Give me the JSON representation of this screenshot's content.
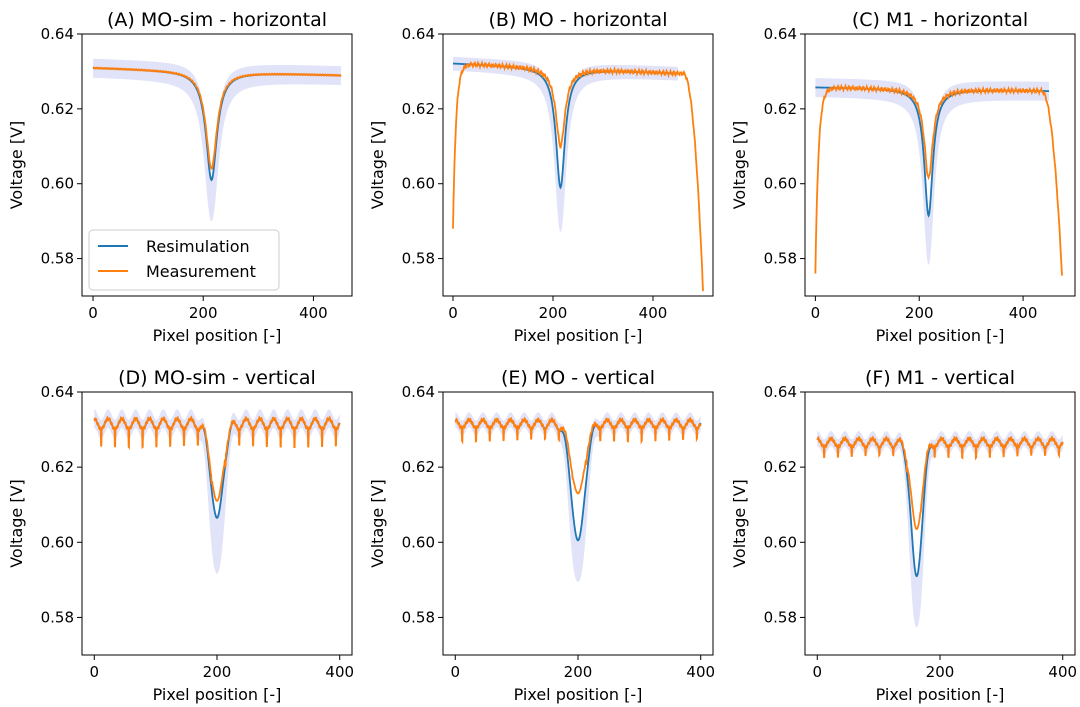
{
  "colors": {
    "resimulation": "#1f77b4",
    "measurement": "#ff7f0e",
    "band": "#c8ccf2"
  },
  "legend": {
    "resimulation": "Resimulation",
    "measurement": "Measurement"
  },
  "chart_data": [
    {
      "type": "line",
      "id": "A",
      "title": "(A) MO-sim - horizontal",
      "xlabel": "Pixel position [-]",
      "ylabel": "Voltage [V]",
      "xlim": [
        -20,
        470
      ],
      "ylim": [
        0.57,
        0.64
      ],
      "xticks": [
        0,
        200,
        400
      ],
      "yticks": [
        0.58,
        0.6,
        0.62,
        0.64
      ],
      "yticklabels": [
        "0.58",
        "0.60",
        "0.62",
        "0.64"
      ],
      "legend": "lower-left",
      "profile": {
        "kind": "horizontal",
        "x_start": 0,
        "x_end": 450,
        "baseline_start": 0.631,
        "baseline_end": 0.629,
        "dip_center": 215,
        "dip_width": 12
      },
      "series": [
        {
          "name": "Resimulation",
          "dip_min": 0.601,
          "band_half_width": 0.0025,
          "band_dip_min": 0.588
        },
        {
          "name": "Measurement",
          "dip_min": 0.604,
          "edge_dropoff": false
        }
      ]
    },
    {
      "type": "line",
      "id": "B",
      "title": "(B) MO - horizontal",
      "xlabel": "Pixel position [-]",
      "ylabel": "Voltage [V]",
      "xlim": [
        -20,
        520
      ],
      "ylim": [
        0.57,
        0.64
      ],
      "xticks": [
        0,
        200,
        400
      ],
      "yticks": [
        0.58,
        0.6,
        0.62,
        0.64
      ],
      "yticklabels": [
        "0.58",
        "0.60",
        "0.62",
        "0.64"
      ],
      "profile": {
        "kind": "horizontal",
        "x_start": 0,
        "x_end": 450,
        "baseline_start": 0.6322,
        "baseline_end": 0.6295,
        "dip_center": 215,
        "dip_width": 11
      },
      "series": [
        {
          "name": "Resimulation",
          "dip_min": 0.599,
          "band_half_width": 0.0018,
          "band_dip_min": 0.585
        },
        {
          "name": "Measurement",
          "dip_min": 0.61,
          "x_end": 500,
          "start_value": 0.588,
          "end_value": 0.5715,
          "edge_dropoff": true
        }
      ]
    },
    {
      "type": "line",
      "id": "C",
      "title": "(C) M1 - horizontal",
      "xlabel": "Pixel position [-]",
      "ylabel": "Voltage [V]",
      "xlim": [
        -20,
        500
      ],
      "ylim": [
        0.57,
        0.64
      ],
      "xticks": [
        0,
        200,
        400
      ],
      "yticks": [
        0.58,
        0.6,
        0.62,
        0.64
      ],
      "yticklabels": [
        "0.58",
        "0.60",
        "0.62",
        "0.64"
      ],
      "profile": {
        "kind": "horizontal",
        "x_start": 0,
        "x_end": 450,
        "baseline_start": 0.6258,
        "baseline_end": 0.6248,
        "dip_center": 218,
        "dip_width": 10
      },
      "series": [
        {
          "name": "Resimulation",
          "dip_min": 0.5915,
          "band_half_width": 0.0025,
          "band_dip_min": 0.576
        },
        {
          "name": "Measurement",
          "dip_min": 0.6015,
          "x_end": 475,
          "start_value": 0.576,
          "end_value": 0.5755,
          "edge_dropoff": true
        }
      ]
    },
    {
      "type": "line",
      "id": "D",
      "title": "(D) MO-sim - vertical",
      "xlabel": "Pixel position [-]",
      "ylabel": "Voltage [V]",
      "xlim": [
        -20,
        420
      ],
      "ylim": [
        0.57,
        0.64
      ],
      "xticks": [
        0,
        200,
        400
      ],
      "yticks": [
        0.58,
        0.6,
        0.62,
        0.64
      ],
      "yticklabels": [
        "0.58",
        "0.60",
        "0.62",
        "0.64"
      ],
      "profile": {
        "kind": "vertical",
        "x_start": 0,
        "x_end": 400,
        "baseline": 0.6315,
        "period": 22.5,
        "ripple_amp": 0.0028,
        "spike_depth": 0.007,
        "dip_center": 200,
        "dip_width": 10
      },
      "series": [
        {
          "name": "Resimulation",
          "dip_min": 0.6065,
          "band_half_width": 0.0025,
          "band_dip_min": 0.589
        },
        {
          "name": "Measurement",
          "dip_min": 0.611
        }
      ]
    },
    {
      "type": "line",
      "id": "E",
      "title": "(E) MO - vertical",
      "xlabel": "Pixel position [-]",
      "ylabel": "Voltage [V]",
      "xlim": [
        -20,
        420
      ],
      "ylim": [
        0.57,
        0.64
      ],
      "xticks": [
        0,
        200,
        400
      ],
      "yticks": [
        0.58,
        0.6,
        0.62,
        0.64
      ],
      "yticklabels": [
        "0.58",
        "0.60",
        "0.62",
        "0.64"
      ],
      "profile": {
        "kind": "vertical",
        "x_start": 0,
        "x_end": 400,
        "baseline": 0.6315,
        "period": 22.5,
        "ripple_amp": 0.0022,
        "spike_depth": 0.005,
        "dip_center": 200,
        "dip_width": 11
      },
      "series": [
        {
          "name": "Resimulation",
          "dip_min": 0.6005,
          "band_half_width": 0.002,
          "band_dip_min": 0.5875
        },
        {
          "name": "Measurement",
          "dip_min": 0.613
        }
      ]
    },
    {
      "type": "line",
      "id": "F",
      "title": "(F) M1 - vertical",
      "xlabel": "Pixel position [-]",
      "ylabel": "Voltage [V]",
      "xlim": [
        -20,
        420
      ],
      "ylim": [
        0.57,
        0.64
      ],
      "xticks": [
        0,
        200,
        400
      ],
      "yticks": [
        0.58,
        0.6,
        0.62,
        0.64
      ],
      "yticklabels": [
        "0.58",
        "0.60",
        "0.62",
        "0.64"
      ],
      "profile": {
        "kind": "vertical",
        "x_start": 0,
        "x_end": 400,
        "baseline": 0.6265,
        "period": 22.5,
        "ripple_amp": 0.0022,
        "spike_depth": 0.004,
        "dip_center": 162,
        "dip_width": 9
      },
      "series": [
        {
          "name": "Resimulation",
          "dip_min": 0.591,
          "band_half_width": 0.002,
          "band_dip_min": 0.575
        },
        {
          "name": "Measurement",
          "dip_min": 0.6035
        }
      ]
    }
  ]
}
